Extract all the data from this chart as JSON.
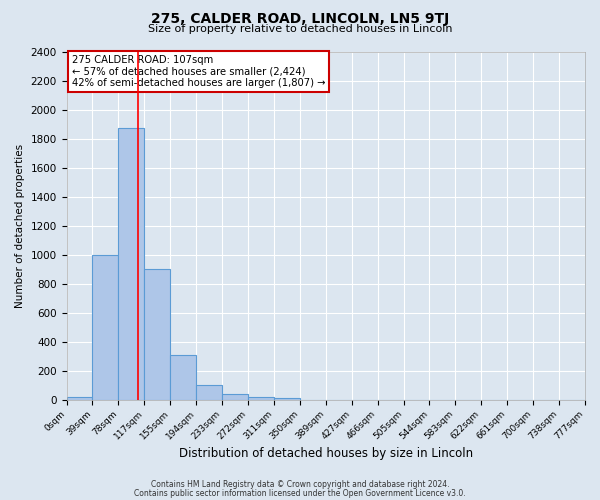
{
  "title": "275, CALDER ROAD, LINCOLN, LN5 9TJ",
  "subtitle": "Size of property relative to detached houses in Lincoln",
  "xlabel": "Distribution of detached houses by size in Lincoln",
  "ylabel": "Number of detached properties",
  "bin_labels": [
    "0sqm",
    "39sqm",
    "78sqm",
    "117sqm",
    "155sqm",
    "194sqm",
    "233sqm",
    "272sqm",
    "311sqm",
    "350sqm",
    "389sqm",
    "427sqm",
    "466sqm",
    "505sqm",
    "544sqm",
    "583sqm",
    "622sqm",
    "661sqm",
    "700sqm",
    "738sqm",
    "777sqm"
  ],
  "bar_values": [
    20,
    1000,
    1870,
    900,
    305,
    100,
    40,
    20,
    10,
    0,
    0,
    0,
    0,
    0,
    0,
    0,
    0,
    0,
    0,
    0
  ],
  "bar_color": "#aec6e8",
  "bar_edge_color": "#5b9bd5",
  "red_line_x": 107,
  "bin_width": 39,
  "annotation_title": "275 CALDER ROAD: 107sqm",
  "annotation_line1": "← 57% of detached houses are smaller (2,424)",
  "annotation_line2": "42% of semi-detached houses are larger (1,807) →",
  "annotation_box_color": "#ffffff",
  "annotation_box_edge": "#cc0000",
  "footer1": "Contains HM Land Registry data © Crown copyright and database right 2024.",
  "footer2": "Contains public sector information licensed under the Open Government Licence v3.0.",
  "ylim": [
    0,
    2400
  ],
  "background_color": "#dce6f0",
  "plot_background": "#dce6f0",
  "yticks": [
    0,
    200,
    400,
    600,
    800,
    1000,
    1200,
    1400,
    1600,
    1800,
    2000,
    2200,
    2400
  ]
}
